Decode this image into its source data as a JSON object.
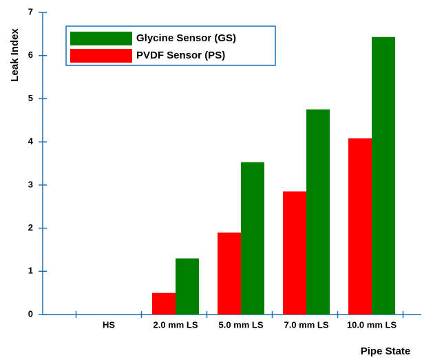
{
  "chart_data": {
    "type": "bar",
    "x_label": "Pipe State",
    "y_label": "Leak Index",
    "categories": [
      "HS",
      "2.0 mm LS",
      "5.0 mm LS",
      "7.0 mm LS",
      "10.0 mm LS"
    ],
    "series": [
      {
        "name": "PVDF Sensor (PS)",
        "color": "#ff0000",
        "values": [
          0,
          0.5,
          1.9,
          2.85,
          4.08
        ]
      },
      {
        "name": "Glycine Sensor (GS)",
        "color": "#008000",
        "values": [
          0,
          1.3,
          3.53,
          4.75,
          6.43
        ]
      }
    ],
    "ylim": [
      0,
      7
    ],
    "yticks": [
      0,
      1,
      2,
      3,
      4,
      5,
      6,
      7
    ],
    "grid": false
  }
}
